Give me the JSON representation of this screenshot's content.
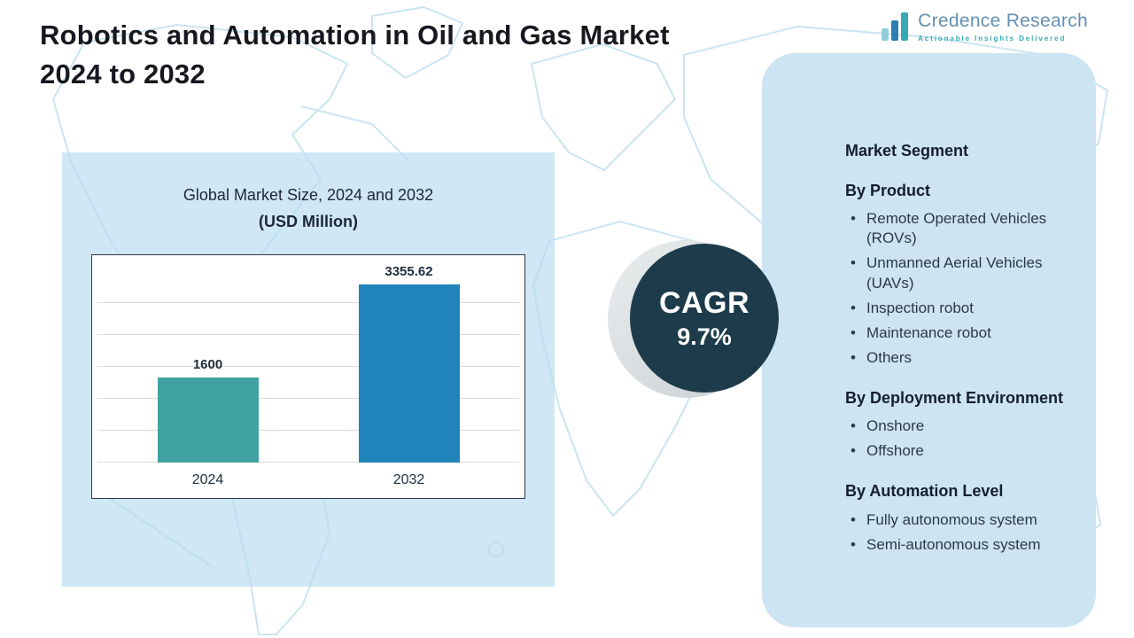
{
  "title": {
    "text": "Robotics and Automation in Oil and Gas Market\n2024 to 2032"
  },
  "logo": {
    "name": "Credence Research",
    "tagline": "Actionable Insights Delivered"
  },
  "chart_panel": {
    "title_line1": "Global Market Size, 2024 and 2032",
    "title_line2": "(USD Million)"
  },
  "chart_data": {
    "type": "bar",
    "title": "Global Market Size, 2024 and 2032 (USD Million)",
    "categories": [
      "2024",
      "2032"
    ],
    "values": [
      1600,
      3355.62
    ],
    "value_labels": [
      "1600",
      "3355.62"
    ],
    "bar_colors": [
      "#41a3a1",
      "#2083ba"
    ],
    "ylim": [
      0,
      3600
    ],
    "grid": true,
    "legend": "none",
    "unit": "USD Million"
  },
  "cagr": {
    "label": "CAGR",
    "value": "9.7%"
  },
  "segments": {
    "heading": "Market Segment",
    "groups": [
      {
        "title": "By Product",
        "items": [
          "Remote Operated Vehicles (ROVs)",
          "Unmanned Aerial Vehicles (UAVs)",
          "Inspection robot",
          "Maintenance robot",
          "Others"
        ]
      },
      {
        "title": "By Deployment Environment",
        "items": [
          "Onshore",
          "Offshore"
        ]
      },
      {
        "title": "By Automation Level",
        "items": [
          "Fully autonomous system",
          "Semi-autonomous system"
        ]
      }
    ]
  },
  "colors": {
    "bar_2024": "#41a3a1",
    "bar_2032": "#2083ba",
    "cagr_circle": "#1d3b4b",
    "panel_blue": "#cde4f2",
    "map_line": "#c9e5f1"
  }
}
